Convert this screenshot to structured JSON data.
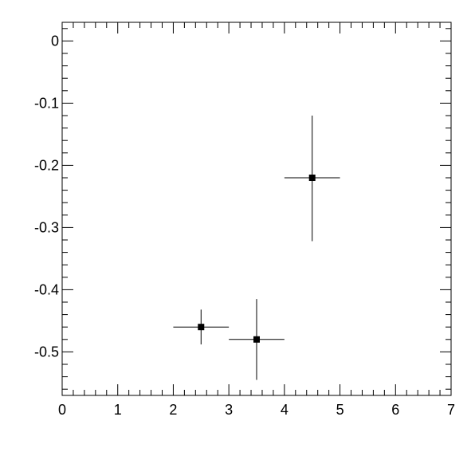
{
  "chart_data": {
    "type": "scatter",
    "title": "",
    "xlabel": "",
    "ylabel": "",
    "xlim": [
      0,
      7
    ],
    "ylim": [
      -0.57,
      0.03
    ],
    "x_ticks": [
      0,
      1,
      2,
      3,
      4,
      5,
      6,
      7
    ],
    "x_tick_labels": [
      "0",
      "1",
      "2",
      "3",
      "4",
      "5",
      "6",
      "7"
    ],
    "y_ticks": [
      0,
      -0.1,
      -0.2,
      -0.3,
      -0.4,
      -0.5
    ],
    "y_tick_labels": [
      "0",
      "-0.1",
      "-0.2",
      "-0.3",
      "-0.4",
      "-0.5"
    ],
    "grid": false,
    "legend": "none",
    "marker": "square",
    "color": "#000000",
    "points": [
      {
        "x": 2.5,
        "y": -0.46,
        "x_err": 0.5,
        "y_err_low": 0.028,
        "y_err_high": 0.028
      },
      {
        "x": 3.5,
        "y": -0.48,
        "x_err": 0.5,
        "y_err_low": 0.065,
        "y_err_high": 0.065
      },
      {
        "x": 4.5,
        "y": -0.22,
        "x_err": 0.5,
        "y_err_low": 0.102,
        "y_err_high": 0.1
      }
    ]
  }
}
